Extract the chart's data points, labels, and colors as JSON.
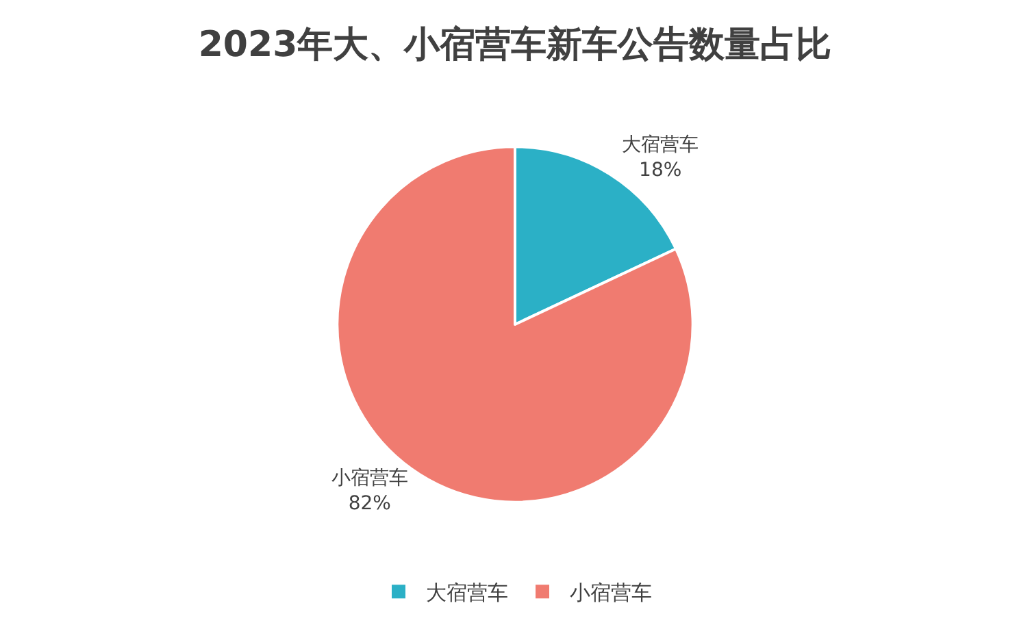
{
  "chart_data": {
    "type": "pie",
    "title": "2023年大、小宿营车新车公告数量占比",
    "categories": [
      "大宿营车",
      "小宿营车"
    ],
    "values": [
      18,
      82
    ],
    "colors": [
      "#2bb0c6",
      "#f07b70"
    ],
    "value_labels": [
      "18%",
      "82%"
    ],
    "legend": "bottom"
  }
}
